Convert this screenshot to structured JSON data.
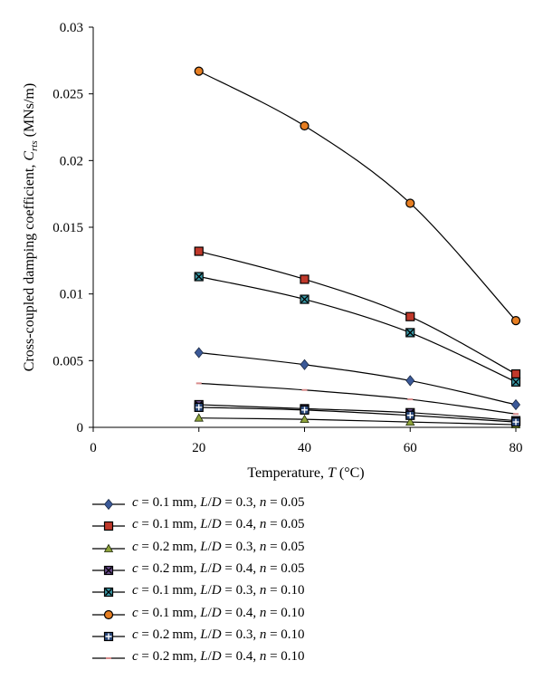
{
  "chart_data": {
    "type": "line",
    "x": [
      20,
      40,
      60,
      80
    ],
    "xlabel": "Temperature, T (°C)",
    "ylabel": "Cross-coupled damping coefficient, C_rts (MNs/m)",
    "xlim": [
      0,
      80
    ],
    "ylim": [
      0,
      0.03
    ],
    "xticks": [
      "0",
      "20",
      "40",
      "60",
      "80"
    ],
    "yticks": [
      "0",
      "0.005",
      "0.01",
      "0.015",
      "0.02",
      "0.025",
      "0.03"
    ],
    "grid": false,
    "legend_position": "bottom",
    "series": [
      {
        "name": "c = 0.1 mm, L/D = 0.3, n = 0.05",
        "values": [
          0.0056,
          0.0047,
          0.0035,
          0.0017
        ],
        "marker": "diamond",
        "color": "#3b5998"
      },
      {
        "name": "c = 0.1 mm, L/D = 0.4, n = 0.05",
        "values": [
          0.0132,
          0.0111,
          0.0083,
          0.004
        ],
        "marker": "square",
        "color": "#c0392b"
      },
      {
        "name": "c = 0.2 mm, L/D = 0.3, n = 0.05",
        "values": [
          0.0007,
          0.0006,
          0.0004,
          0.0002
        ],
        "marker": "triangle",
        "color": "#8fa33a"
      },
      {
        "name": "c = 0.2 mm, L/D = 0.4, n = 0.05",
        "values": [
          0.0017,
          0.0014,
          0.0011,
          0.0005
        ],
        "marker": "xbox",
        "color": "#6a4c8c"
      },
      {
        "name": "c = 0.1 mm, L/D = 0.3, n = 0.10",
        "values": [
          0.0113,
          0.0096,
          0.0071,
          0.0034
        ],
        "marker": "xbox",
        "color": "#3a9aa8"
      },
      {
        "name": "c = 0.1 mm, L/D = 0.4, n = 0.10",
        "values": [
          0.0267,
          0.0226,
          0.0168,
          0.008
        ],
        "marker": "circle",
        "color": "#e67e22"
      },
      {
        "name": "c = 0.2 mm, L/D = 0.3, n = 0.10",
        "values": [
          0.0015,
          0.0013,
          0.0009,
          0.0004
        ],
        "marker": "plusbox",
        "color": "#2c4a7c"
      },
      {
        "name": "c = 0.2 mm, L/D = 0.4, n = 0.10",
        "values": [
          0.0033,
          0.0028,
          0.0021,
          0.001
        ],
        "marker": "dash",
        "color": "#d98c8c"
      }
    ]
  },
  "legend": [
    {
      "c": "0.1",
      "ld": "0.3",
      "n": "0.05"
    },
    {
      "c": "0.1",
      "ld": "0.4",
      "n": "0.05"
    },
    {
      "c": "0.2",
      "ld": "0.3",
      "n": "0.05"
    },
    {
      "c": "0.2",
      "ld": "0.4",
      "n": "0.05"
    },
    {
      "c": "0.1",
      "ld": "0.3",
      "n": "0.10"
    },
    {
      "c": "0.1",
      "ld": "0.4",
      "n": "0.10"
    },
    {
      "c": "0.2",
      "ld": "0.3",
      "n": "0.10"
    },
    {
      "c": "0.2",
      "ld": "0.4",
      "n": "0.10"
    }
  ]
}
